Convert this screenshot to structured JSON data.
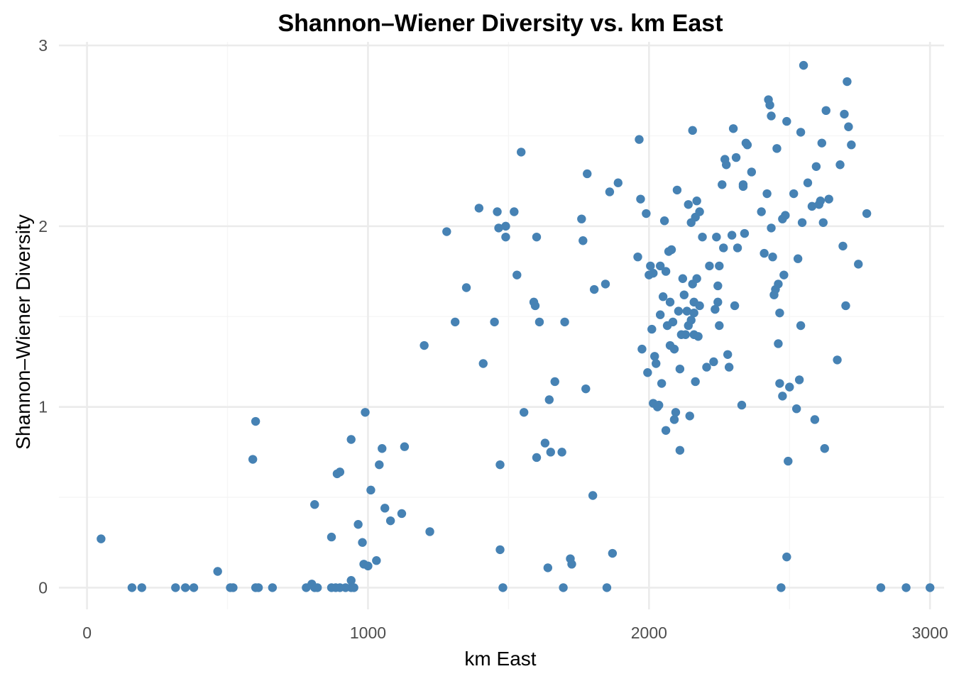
{
  "chart_data": {
    "type": "scatter",
    "title": "Shannon–Wiener Diversity vs. km East",
    "xlabel": "km East",
    "ylabel": "Shannon–Wiener Diversity",
    "xlim": [
      -100,
      3050
    ],
    "ylim": [
      -0.12,
      3.02
    ],
    "x_ticks": [
      0,
      1000,
      2000,
      3000
    ],
    "x_tick_labels": [
      "0",
      "1000",
      "2000",
      "3000"
    ],
    "y_ticks": [
      0,
      1,
      2,
      3
    ],
    "y_tick_labels": [
      "0",
      "1",
      "2",
      "3"
    ],
    "grid": true,
    "point_color": "#4682b4",
    "x": [
      50,
      160,
      195,
      315,
      350,
      380,
      465,
      510,
      520,
      600,
      610,
      660,
      590,
      600,
      780,
      800,
      810,
      820,
      870,
      885,
      900,
      920,
      940,
      950,
      940,
      810,
      870,
      890,
      900,
      940,
      965,
      980,
      985,
      990,
      1000,
      1010,
      1030,
      1040,
      1050,
      1060,
      1080,
      1120,
      1130,
      1200,
      1220,
      1280,
      1310,
      1350,
      1395,
      1410,
      1450,
      1460,
      1465,
      1470,
      1470,
      1480,
      1490,
      1490,
      1520,
      1530,
      1545,
      1555,
      1590,
      1595,
      1600,
      1600,
      1610,
      1630,
      1640,
      1645,
      1650,
      1665,
      1690,
      1695,
      1700,
      1720,
      1725,
      1760,
      1765,
      1775,
      1780,
      1800,
      1805,
      1845,
      1850,
      1860,
      1870,
      1890,
      1960,
      1965,
      1970,
      1975,
      1990,
      1995,
      2000,
      2005,
      2010,
      2015,
      2015,
      2020,
      2025,
      2030,
      2035,
      2040,
      2040,
      2045,
      2050,
      2055,
      2060,
      2060,
      2065,
      2070,
      2075,
      2075,
      2080,
      2085,
      2090,
      2090,
      2095,
      2100,
      2105,
      2110,
      2110,
      2115,
      2120,
      2125,
      2130,
      2135,
      2140,
      2140,
      2145,
      2150,
      2150,
      2155,
      2155,
      2160,
      2160,
      2160,
      2165,
      2165,
      2170,
      2170,
      2175,
      2180,
      2180,
      2190,
      2205,
      2215,
      2230,
      2235,
      2240,
      2245,
      2245,
      2250,
      2250,
      2260,
      2265,
      2270,
      2275,
      2280,
      2285,
      2295,
      2300,
      2305,
      2310,
      2315,
      2330,
      2335,
      2335,
      2340,
      2345,
      2350,
      2365,
      2400,
      2410,
      2420,
      2425,
      2430,
      2435,
      2435,
      2440,
      2445,
      2450,
      2455,
      2460,
      2460,
      2465,
      2465,
      2470,
      2475,
      2475,
      2480,
      2485,
      2490,
      2490,
      2495,
      2500,
      2515,
      2525,
      2530,
      2535,
      2540,
      2540,
      2545,
      2550,
      2565,
      2580,
      2590,
      2595,
      2605,
      2610,
      2615,
      2620,
      2625,
      2630,
      2640,
      2670,
      2680,
      2690,
      2695,
      2700,
      2705,
      2710,
      2720,
      2745,
      2775,
      2825,
      2915,
      3000
    ],
    "y": [
      0.27,
      0.0,
      0.0,
      0.0,
      0.0,
      0.0,
      0.09,
      0.0,
      0.0,
      0.0,
      0.0,
      0.0,
      0.71,
      0.92,
      0.0,
      0.02,
      0.0,
      0.0,
      0.0,
      0.0,
      0.0,
      0.0,
      0.0,
      0.0,
      0.04,
      0.46,
      0.28,
      0.63,
      0.64,
      0.82,
      0.35,
      0.25,
      0.13,
      0.97,
      0.12,
      0.54,
      0.15,
      0.68,
      0.77,
      0.44,
      0.37,
      0.41,
      0.78,
      1.34,
      0.31,
      1.97,
      1.47,
      1.66,
      2.1,
      1.24,
      1.47,
      2.08,
      1.99,
      0.68,
      0.21,
      0.0,
      1.94,
      2.0,
      2.08,
      1.73,
      2.41,
      0.97,
      1.58,
      1.56,
      1.94,
      0.72,
      1.47,
      0.8,
      0.11,
      1.04,
      0.75,
      1.14,
      0.75,
      0.0,
      1.47,
      0.16,
      0.13,
      2.04,
      1.92,
      1.1,
      2.29,
      0.51,
      1.65,
      1.68,
      0.0,
      2.19,
      0.19,
      2.24,
      1.83,
      2.48,
      2.15,
      1.32,
      2.07,
      1.19,
      1.73,
      1.78,
      1.43,
      1.02,
      1.74,
      1.28,
      1.24,
      1.0,
      1.01,
      1.51,
      1.78,
      1.13,
      1.61,
      2.03,
      0.87,
      1.75,
      1.45,
      1.86,
      1.58,
      1.34,
      1.87,
      1.47,
      0.93,
      1.32,
      0.97,
      2.2,
      1.53,
      0.76,
      1.21,
      1.4,
      1.71,
      1.62,
      1.4,
      1.53,
      1.45,
      2.12,
      0.95,
      1.48,
      2.02,
      1.68,
      2.53,
      1.4,
      1.52,
      1.58,
      2.05,
      1.14,
      1.71,
      2.14,
      1.39,
      2.08,
      1.56,
      1.94,
      1.22,
      1.78,
      1.25,
      1.54,
      1.94,
      1.67,
      1.58,
      1.45,
      1.78,
      2.23,
      1.88,
      2.37,
      2.34,
      1.29,
      1.22,
      1.95,
      2.54,
      1.56,
      2.38,
      1.88,
      1.01,
      2.23,
      2.22,
      1.96,
      2.46,
      2.45,
      2.3,
      2.08,
      1.85,
      2.18,
      2.7,
      2.67,
      1.99,
      2.61,
      1.83,
      1.62,
      1.65,
      2.43,
      1.68,
      1.35,
      1.13,
      1.52,
      0.0,
      2.04,
      1.06,
      1.73,
      2.06,
      0.17,
      2.58,
      0.7,
      1.11,
      2.18,
      0.99,
      1.82,
      1.15,
      2.52,
      1.45,
      2.02,
      2.89,
      2.24,
      2.11,
      0.93,
      2.33,
      2.12,
      2.14,
      2.46,
      2.02,
      0.77,
      2.64,
      2.15,
      1.26,
      2.34,
      1.89,
      2.62,
      1.56,
      2.8,
      2.55,
      2.45,
      1.79,
      2.07,
      0.0,
      0.0,
      0.0
    ]
  }
}
